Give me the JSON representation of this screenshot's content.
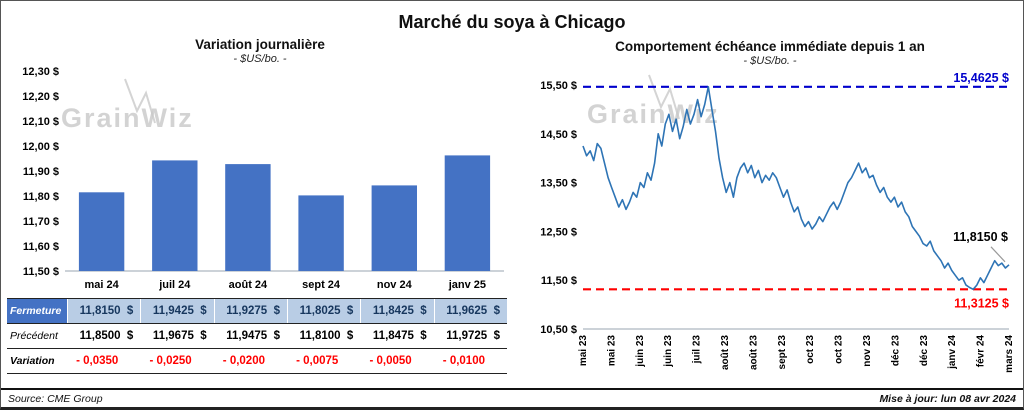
{
  "page": {
    "title": "Marché du soya à Chicago",
    "watermark": "GrainWiz",
    "source": "Source: CME Group",
    "updated": "Mise à jour: lun 08 avr 2024"
  },
  "colors": {
    "bar_fill": "#4472C4",
    "line": "#2E74B5",
    "max_line": "#0000CC",
    "min_line": "#FF0000",
    "annotation": "#000000",
    "watermark": "#C9C9C9",
    "axis": "#9AA4B0"
  },
  "chart_data": [
    {
      "type": "bar",
      "title": "Variation  journalière",
      "subtitle": "- $US/bo. -",
      "categories": [
        "mai 24",
        "juil 24",
        "août 24",
        "sept 24",
        "nov 24",
        "janv 25"
      ],
      "values": [
        11.815,
        11.9425,
        11.9275,
        11.8025,
        11.8425,
        11.9625
      ],
      "ylim": [
        11.5,
        12.3
      ],
      "ytick_step": 0.1,
      "ytick_labels": [
        "11,50 $",
        "11,60 $",
        "11,70 $",
        "11,80 $",
        "11,90 $",
        "12,00 $",
        "12,10 $",
        "12,20 $",
        "12,30 $"
      ]
    },
    {
      "type": "line",
      "title": "Comportement  échéance  immédiate  depuis 1 an",
      "subtitle": "- $US/bo. -",
      "x_labels": [
        "mai 23",
        "mai 23",
        "juin 23",
        "juin 23",
        "juil 23",
        "août 23",
        "août 23",
        "sept 23",
        "oct 23",
        "oct 23",
        "nov 23",
        "déc 23",
        "déc 23",
        "janv 24",
        "févr 24",
        "mars 24"
      ],
      "ylim": [
        10.5,
        15.5
      ],
      "ytick_step": 1.0,
      "ytick_labels": [
        "10,50 $",
        "11,50 $",
        "12,50 $",
        "13,50 $",
        "14,50 $",
        "15,50 $"
      ],
      "max_line": {
        "value": 15.4625,
        "label": "15,4625 $"
      },
      "min_line": {
        "value": 11.3125,
        "label": "11,3125 $"
      },
      "last_label": "11,8150 $",
      "values": [
        14.25,
        14.05,
        14.15,
        13.95,
        14.3,
        14.2,
        13.9,
        13.6,
        13.4,
        13.2,
        13.0,
        13.15,
        12.95,
        13.1,
        13.3,
        13.2,
        13.5,
        13.4,
        13.7,
        13.55,
        13.9,
        14.5,
        14.25,
        14.7,
        14.9,
        14.55,
        14.8,
        14.4,
        14.65,
        15.0,
        14.7,
        14.9,
        15.2,
        14.85,
        15.1,
        15.4625,
        15.0,
        14.55,
        14.0,
        13.6,
        13.3,
        13.5,
        13.2,
        13.6,
        13.8,
        13.9,
        13.7,
        13.85,
        13.6,
        13.75,
        13.5,
        13.65,
        13.55,
        13.7,
        13.6,
        13.4,
        13.2,
        13.35,
        13.1,
        12.9,
        13.0,
        12.75,
        12.6,
        12.7,
        12.55,
        12.65,
        12.8,
        12.7,
        12.85,
        13.0,
        13.1,
        12.95,
        13.1,
        13.3,
        13.5,
        13.6,
        13.75,
        13.9,
        13.7,
        13.8,
        13.6,
        13.65,
        13.45,
        13.3,
        13.4,
        13.2,
        13.1,
        13.2,
        13.0,
        13.1,
        12.9,
        12.8,
        12.6,
        12.5,
        12.4,
        12.25,
        12.2,
        12.3,
        12.1,
        12.0,
        11.9,
        11.75,
        11.85,
        11.7,
        11.6,
        11.5,
        11.55,
        11.4,
        11.35,
        11.3125,
        11.4,
        11.55,
        11.45,
        11.6,
        11.75,
        11.9,
        11.8,
        11.85,
        11.75,
        11.815
      ]
    }
  ],
  "table": {
    "rows": [
      {
        "kind": "fermeture",
        "label": "Fermeture",
        "values": [
          "11,8150  $",
          "11,9425  $",
          "11,9275  $",
          "11,8025  $",
          "11,8425  $",
          "11,9625  $"
        ]
      },
      {
        "kind": "precedent",
        "label": "Précédent",
        "values": [
          "11,8500  $",
          "11,9675  $",
          "11,9475  $",
          "11,8100  $",
          "11,8475  $",
          "11,9725  $"
        ]
      },
      {
        "kind": "variation",
        "label": "Variation",
        "values": [
          "- 0,0350",
          "- 0,0250",
          "- 0,0200",
          "- 0,0075",
          "- 0,0050",
          "- 0,0100"
        ]
      }
    ]
  }
}
